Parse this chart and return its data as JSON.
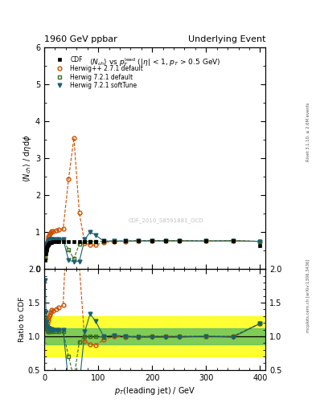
{
  "title_left": "1960 GeV ppbar",
  "title_right": "Underlying Event",
  "watermark": "CDF_2010_S8591881_OCD",
  "cdf_x": [
    2,
    3,
    4,
    5,
    6,
    7,
    8,
    9,
    10,
    12,
    14,
    17,
    22,
    27,
    35,
    45,
    55,
    65,
    75,
    85,
    95,
    110,
    130,
    150,
    175,
    200,
    225,
    250,
    300,
    350,
    400
  ],
  "cdf_y": [
    0.25,
    0.42,
    0.52,
    0.58,
    0.63,
    0.66,
    0.68,
    0.7,
    0.72,
    0.73,
    0.73,
    0.74,
    0.74,
    0.74,
    0.74,
    0.74,
    0.75,
    0.74,
    0.75,
    0.75,
    0.75,
    0.76,
    0.75,
    0.76,
    0.77,
    0.77,
    0.77,
    0.77,
    0.76,
    0.77,
    0.63
  ],
  "cdf_color": "#000000",
  "hpp_x": [
    2,
    3,
    4,
    5,
    6,
    7,
    8,
    9,
    10,
    12,
    14,
    17,
    22,
    27,
    35,
    45,
    55,
    65,
    75,
    85,
    95,
    110,
    130,
    150,
    175,
    200,
    225,
    250,
    300,
    350,
    400
  ],
  "hpp_y": [
    0.28,
    0.48,
    0.58,
    0.66,
    0.75,
    0.82,
    0.87,
    0.91,
    0.95,
    0.99,
    1.02,
    1.02,
    1.04,
    1.06,
    1.08,
    2.43,
    3.55,
    1.52,
    0.7,
    0.66,
    0.65,
    0.72,
    0.75,
    0.75,
    0.76,
    0.77,
    0.77,
    0.77,
    0.76,
    0.77,
    0.75
  ],
  "hpp_color": "#c85000",
  "h721_x": [
    2,
    3,
    4,
    5,
    6,
    7,
    8,
    9,
    10,
    12,
    14,
    17,
    22,
    27,
    35,
    45,
    55,
    65,
    75,
    85,
    95,
    110,
    130,
    150,
    175,
    200,
    225,
    250,
    300,
    350,
    400
  ],
  "h721_y": [
    0.32,
    0.5,
    0.6,
    0.65,
    0.68,
    0.71,
    0.73,
    0.75,
    0.77,
    0.79,
    0.79,
    0.79,
    0.79,
    0.79,
    0.79,
    0.52,
    0.28,
    0.68,
    0.75,
    0.75,
    0.75,
    0.75,
    0.76,
    0.76,
    0.77,
    0.77,
    0.77,
    0.77,
    0.76,
    0.77,
    0.75
  ],
  "h721_color": "#387020",
  "soft_x": [
    2,
    3,
    4,
    5,
    6,
    7,
    8,
    9,
    10,
    12,
    14,
    17,
    22,
    27,
    35,
    45,
    55,
    65,
    75,
    85,
    95,
    110,
    130,
    150,
    175,
    200,
    225,
    250,
    300,
    350,
    400
  ],
  "soft_y": [
    0.46,
    0.57,
    0.63,
    0.67,
    0.71,
    0.74,
    0.76,
    0.78,
    0.8,
    0.8,
    0.81,
    0.81,
    0.81,
    0.81,
    0.81,
    0.24,
    0.2,
    0.21,
    0.8,
    1.0,
    0.92,
    0.76,
    0.76,
    0.76,
    0.76,
    0.76,
    0.76,
    0.76,
    0.76,
    0.76,
    0.75
  ],
  "soft_color": "#1a6070",
  "ylim_main": [
    0,
    6
  ],
  "ylim_ratio": [
    0.5,
    2.0
  ],
  "xlim": [
    0,
    410
  ],
  "yellow_lo": 0.7,
  "yellow_hi": 1.3,
  "green_lo": 0.88,
  "green_hi": 1.12
}
